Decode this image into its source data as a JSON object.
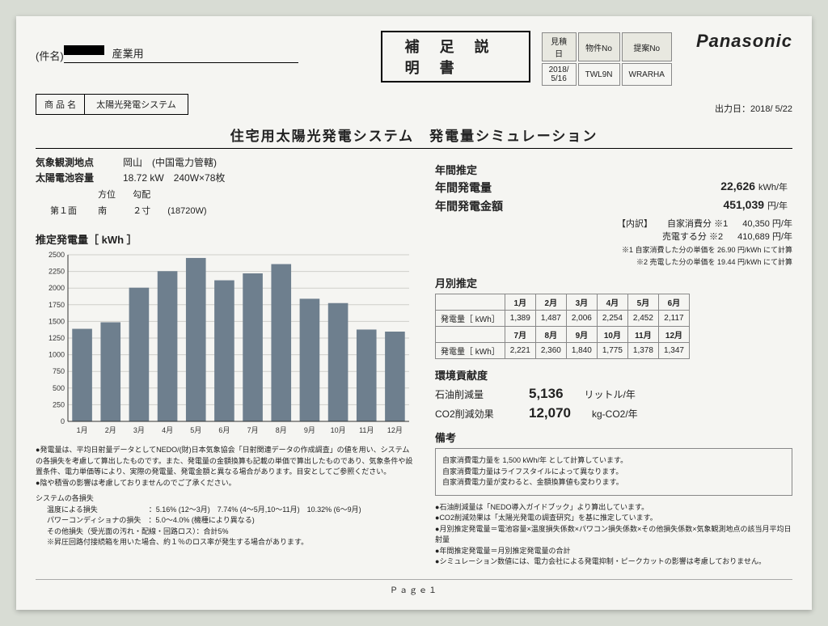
{
  "header": {
    "supp_title": "補 足 説 明 書",
    "info_cols": [
      "見積日",
      "物件No",
      "提案No"
    ],
    "info_vals": [
      "2018/ 5/16",
      "TWL9N",
      "WRARHA"
    ],
    "brand": "Panasonic",
    "kenmei_label": "(件名)",
    "kenmei_suffix": "産業用",
    "prod_label": "商 品 名",
    "prod_name": "太陽光発電システム",
    "output_date": "出力日：2018/ 5/22"
  },
  "title": "住宅用太陽光発電システム　発電量シミュレーション",
  "meta": {
    "obs_label": "気象観測地点",
    "obs_val": "岡山　(中国電力管轄)",
    "cap_label": "太陽電池容量",
    "cap_val": "18.72 kW　240W×78枚",
    "col_hdr": [
      "",
      "方位",
      "勾配",
      ""
    ],
    "row1": [
      "第１面",
      "南",
      "２寸",
      "(18720W)"
    ]
  },
  "chart": {
    "title": "推定発電量［ kWh ］",
    "type": "bar",
    "months": [
      "1月",
      "2月",
      "3月",
      "4月",
      "5月",
      "6月",
      "7月",
      "8月",
      "9月",
      "10月",
      "11月",
      "12月"
    ],
    "values": [
      1389,
      1487,
      2006,
      2254,
      2452,
      2117,
      2221,
      2360,
      1840,
      1775,
      1378,
      1347
    ],
    "ylim": [
      0,
      2500
    ],
    "ytick_step": 250,
    "bar_color": "#6e7f8e",
    "grid_color": "#cfcfca",
    "bg": "#f5f5f2",
    "bar_width": 0.7,
    "axis_fontsize": 9
  },
  "left_notes": {
    "n1": "発電量は、平均日射量データとしてNEDO/(財)日本気象協会「日射関連データの作成調査」の値を用い、システムの各損失を考慮して算出したものです。また、発電量の金額換算も記載の単価で算出したものであり、気象条件や設置条件、電力単価等により、実際の発電量、発電金額と異なる場合があります。目安としてご参照ください。",
    "n2": "陰や積雪の影響は考慮しておりませんのでご了承ください。",
    "loss_h": "システムの各損失",
    "loss1": "温度による損失　　　　　　　：5.16% (12～3月)　7.74% (4～5月,10～11月)　10.32% (6～9月)",
    "loss2": "パワーコンディショナの損失　：5.0～4.0% (機種により異なる)",
    "loss3": "その他損失（受光面の汚れ・配線・回路ロス）：合計5%",
    "loss4": "※昇圧回路付接続箱を用いた場合、約１％のロス率が発生する場合があります。"
  },
  "annual": {
    "h": "年間推定",
    "gen_l": "年間発電量",
    "gen_v": "22,626",
    "gen_u": "kWh/年",
    "amt_l": "年間発電金額",
    "amt_v": "451,039",
    "amt_u": "円/年",
    "bd_h": "【内訳】",
    "bd1_l": "自家消費分 ※1",
    "bd1_v": "40,350 円/年",
    "bd2_l": "売電する分 ※2",
    "bd2_v": "410,689 円/年",
    "note1": "※1 自家消費した分の単価を 26.90 円/kWh にて計算",
    "note2": "※2 売電した分の単価を 19.44 円/kWh にて計算"
  },
  "monthly": {
    "h": "月別推定",
    "row_label": "発電量［ kWh］",
    "months1": [
      "1月",
      "2月",
      "3月",
      "4月",
      "5月",
      "6月"
    ],
    "vals1": [
      "1,389",
      "1,487",
      "2,006",
      "2,254",
      "2,452",
      "2,117"
    ],
    "months2": [
      "7月",
      "8月",
      "9月",
      "10月",
      "11月",
      "12月"
    ],
    "vals2": [
      "2,221",
      "2,360",
      "1,840",
      "1,775",
      "1,378",
      "1,347"
    ]
  },
  "env": {
    "h": "環境貢献度",
    "oil_l": "石油削減量",
    "oil_v": "5,136",
    "oil_u": "リットル/年",
    "co2_l": "CO2削減効果",
    "co2_v": "12,070",
    "co2_u": "kg-CO2/年"
  },
  "remarks": {
    "h": "備考",
    "box1": "自家消費電力量を 1,500 kWh/年 として計算しています。",
    "box2": "自家消費電力量はライフスタイルによって異なります。",
    "box3": "自家消費電力量が変わると、金額換算値も変わります。",
    "b1": "石油削減量は「NEDO導入ガイドブック」より算出しています。",
    "b2": "CO2削減効果は「太陽光発電の調査研究」を基に推定しています。",
    "b3": "月別推定発電量＝電池容量×温度損失係数×パワコン損失係数×その他損失係数×気象観測地点の該当月平均日射量",
    "b4": "年間推定発電量＝月別推定発電量の合計",
    "b5": "シミュレーション数値には、電力会社による発電抑制・ピークカットの影響は考慮しておりません。"
  },
  "footer": "Ｐａｇｅ１"
}
